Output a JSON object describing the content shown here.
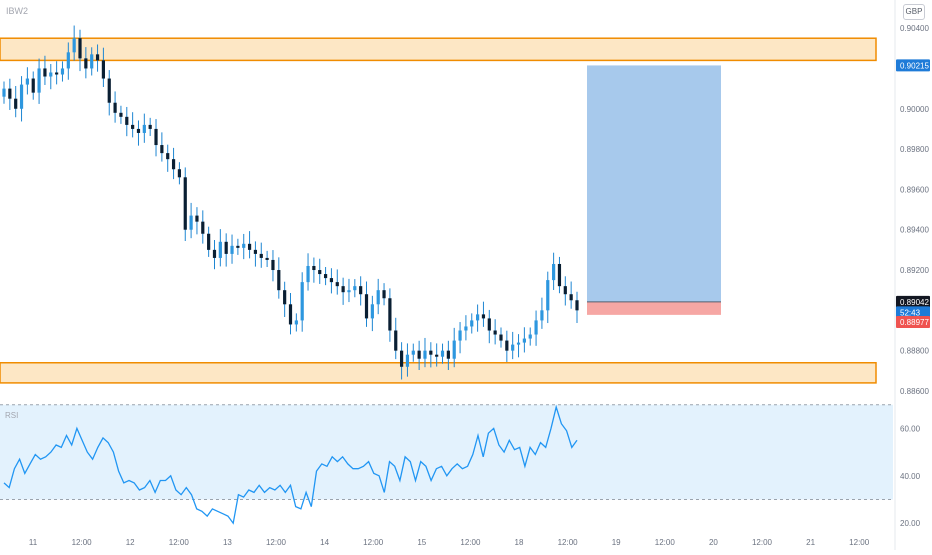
{
  "chart": {
    "symbol": "IBW2",
    "currency": "GBP",
    "colors": {
      "up": "#2d97df",
      "down": "#0a1f33",
      "wick": "#1e86d2",
      "zone_fill": "#fde7c5",
      "zone_border": "#f08c00",
      "target_fill": "#a7c9ec",
      "stop_fill": "#f6a7a4",
      "rsi_line": "#2196f3",
      "rsi_band": "#e3f2fd",
      "price_badge": "#131722",
      "current_badge": "#1e7bd8",
      "stop_badge": "#ef5350"
    },
    "price_axis": {
      "ticks": [
        "0.90400",
        "0.90000",
        "0.89800",
        "0.89600",
        "0.89400",
        "0.89200",
        "0.88800",
        "0.88600"
      ],
      "badges": [
        {
          "label": "0.90215",
          "value": 0.90215,
          "kind": "target"
        },
        {
          "label": "0.89042",
          "value": 0.89042,
          "kind": "last"
        },
        {
          "label": "52:43",
          "value": 0.8899,
          "kind": "timer"
        },
        {
          "label": "0.88977",
          "value": 0.88942,
          "kind": "stop"
        }
      ]
    },
    "time_axis": {
      "labels": [
        "11",
        "12:00",
        "12",
        "12:00",
        "13",
        "12:00",
        "14",
        "12:00",
        "15",
        "12:00",
        "18",
        "12:00",
        "19",
        "12:00",
        "20",
        "12:00",
        "21",
        "12:00"
      ]
    },
    "rsi": {
      "label": "RSI",
      "ticks": [
        "60.00",
        "40.00",
        "20.00"
      ]
    }
  },
  "chart_data": [
    {
      "type": "candlestick",
      "symbol": "IBW2",
      "currency": "GBP",
      "ylim": [
        0.8858,
        0.9049
      ],
      "xlim": [
        0,
        100
      ],
      "x_axis_labels": [
        "11",
        "12:00",
        "12",
        "12:00",
        "13",
        "12:00",
        "14",
        "12:00",
        "15",
        "12:00",
        "18",
        "12:00",
        "19",
        "12:00",
        "20",
        "12:00",
        "21",
        "12:00"
      ],
      "close_series": [
        0.901,
        0.9005,
        0.9,
        0.9012,
        0.9015,
        0.9008,
        0.902,
        0.9016,
        0.9018,
        0.9017,
        0.902,
        0.9028,
        0.9035,
        0.9025,
        0.902,
        0.9027,
        0.9024,
        0.9015,
        0.9003,
        0.8998,
        0.8996,
        0.8992,
        0.899,
        0.8988,
        0.8992,
        0.899,
        0.8982,
        0.8978,
        0.8975,
        0.897,
        0.8966,
        0.894,
        0.8947,
        0.8944,
        0.8938,
        0.893,
        0.8926,
        0.8934,
        0.8928,
        0.8932,
        0.8931,
        0.8933,
        0.893,
        0.8928,
        0.8926,
        0.8925,
        0.892,
        0.891,
        0.8903,
        0.8893,
        0.8895,
        0.8914,
        0.8922,
        0.892,
        0.8918,
        0.8916,
        0.8914,
        0.8912,
        0.8909,
        0.891,
        0.8912,
        0.8908,
        0.8896,
        0.8903,
        0.891,
        0.8906,
        0.889,
        0.888,
        0.8872,
        0.8878,
        0.888,
        0.8876,
        0.888,
        0.8878,
        0.8877,
        0.888,
        0.8876,
        0.8885,
        0.889,
        0.8892,
        0.8895,
        0.8898,
        0.8896,
        0.889,
        0.8888,
        0.8885,
        0.888,
        0.8883,
        0.8884,
        0.8886,
        0.8888,
        0.8895,
        0.89,
        0.8915,
        0.8923,
        0.8912,
        0.8908,
        0.8905,
        0.89
      ],
      "zones": [
        {
          "name": "resistance",
          "from": 0.9024,
          "to": 0.9035
        },
        {
          "name": "support",
          "from": 0.8864,
          "to": 0.8874
        }
      ],
      "position": {
        "type": "long",
        "entry": 0.89042,
        "target": 0.90215,
        "stop": 0.88977
      },
      "last_price": 0.89042
    },
    {
      "type": "line",
      "name": "RSI",
      "ylim": [
        15,
        72
      ],
      "band": [
        30,
        70
      ],
      "y_ticks": [
        60,
        40,
        20
      ],
      "values": [
        37,
        35,
        43,
        47,
        41,
        45,
        49,
        47,
        48,
        50,
        53,
        52,
        57,
        53,
        60,
        55,
        50,
        47,
        52,
        56,
        54,
        50,
        42,
        37,
        38,
        37,
        34,
        35,
        38,
        33,
        38,
        38,
        40,
        34,
        32,
        35,
        32,
        26,
        25,
        23,
        26,
        25,
        24,
        23,
        20,
        32,
        31,
        34,
        33,
        36,
        33,
        35,
        34,
        36,
        33,
        36,
        27,
        26,
        33,
        27,
        42,
        45,
        44,
        48,
        46,
        48,
        45,
        43,
        43,
        44,
        46,
        41,
        40,
        33,
        46,
        44,
        38,
        48,
        46,
        38,
        46,
        44,
        38,
        43,
        44,
        40,
        43,
        45,
        43,
        44,
        49,
        57,
        48,
        58,
        60,
        53,
        50,
        55,
        51,
        52,
        44,
        52,
        49,
        54,
        52,
        60,
        69,
        62,
        59,
        52,
        55
      ]
    }
  ]
}
